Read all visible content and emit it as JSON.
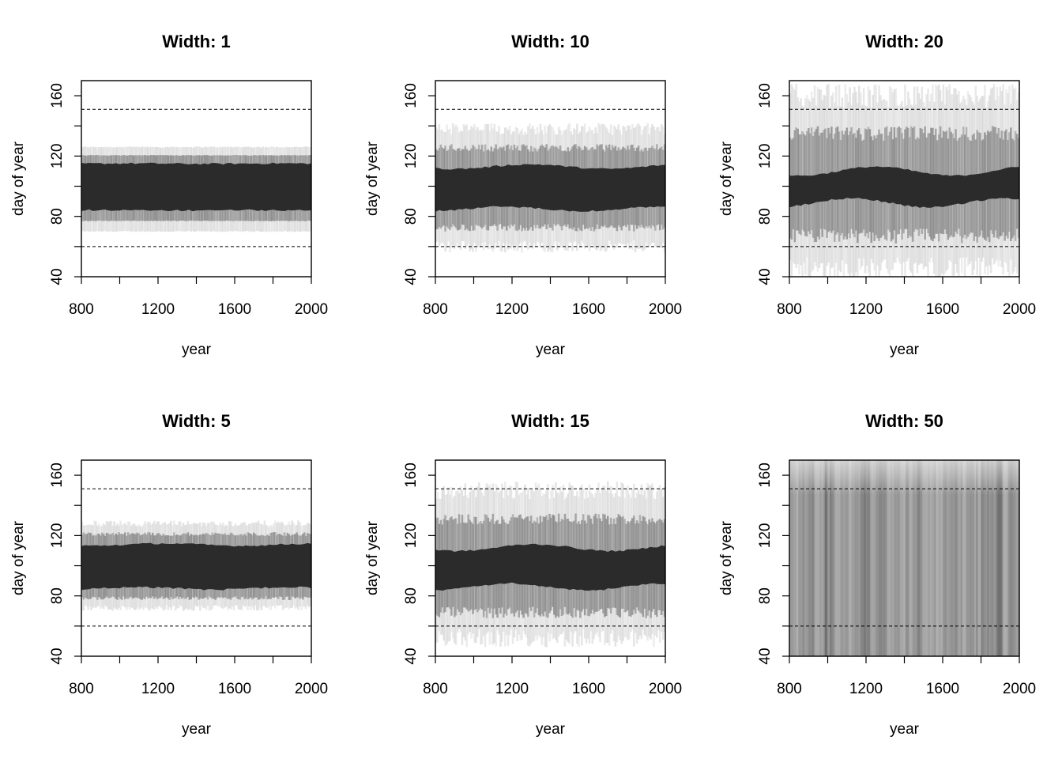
{
  "chart_data": [
    {
      "type": "area",
      "title": "Width: 1",
      "xlabel": "year",
      "ylabel": "day of year",
      "xlim": [
        800,
        2000
      ],
      "ylim": [
        40,
        170
      ],
      "x_ticks": [
        800,
        1200,
        1600,
        2000
      ],
      "y_ticks": [
        40,
        80,
        120,
        160
      ],
      "reference_lines": [
        60,
        151
      ],
      "band": {
        "core_low": 84,
        "core_high": 115,
        "outer_low": 70,
        "outer_high": 126,
        "variability": 1
      },
      "fill_color": "#2b2b2b"
    },
    {
      "type": "area",
      "title": "Width: 10",
      "xlabel": "year",
      "ylabel": "day of year",
      "xlim": [
        800,
        2000
      ],
      "ylim": [
        40,
        170
      ],
      "x_ticks": [
        800,
        1200,
        1600,
        2000
      ],
      "y_ticks": [
        40,
        80,
        120,
        160
      ],
      "reference_lines": [
        60,
        151
      ],
      "band": {
        "core_low": 85,
        "core_high": 113,
        "outer_low": 60,
        "outer_high": 138,
        "variability": 10
      },
      "fill_color": "#2b2b2b"
    },
    {
      "type": "area",
      "title": "Width: 20",
      "xlabel": "year",
      "ylabel": "day of year",
      "xlim": [
        800,
        2000
      ],
      "ylim": [
        40,
        170
      ],
      "x_ticks": [
        800,
        1200,
        1600,
        2000
      ],
      "y_ticks": [
        40,
        80,
        120,
        160
      ],
      "reference_lines": [
        60,
        151
      ],
      "band": {
        "core_low": 89,
        "core_high": 110,
        "outer_low": 45,
        "outer_high": 160,
        "variability": 20
      },
      "fill_color": "#2b2b2b"
    },
    {
      "type": "area",
      "title": "Width: 5",
      "xlabel": "year",
      "ylabel": "day of year",
      "xlim": [
        800,
        2000
      ],
      "ylim": [
        40,
        170
      ],
      "x_ticks": [
        800,
        1200,
        1600,
        2000
      ],
      "y_ticks": [
        40,
        80,
        120,
        160
      ],
      "reference_lines": [
        60,
        151
      ],
      "band": {
        "core_low": 85,
        "core_high": 114,
        "outer_low": 72,
        "outer_high": 128,
        "variability": 5
      },
      "fill_color": "#2b2b2b"
    },
    {
      "type": "area",
      "title": "Width: 15",
      "xlabel": "year",
      "ylabel": "day of year",
      "xlim": [
        800,
        2000
      ],
      "ylim": [
        40,
        170
      ],
      "x_ticks": [
        800,
        1200,
        1600,
        2000
      ],
      "y_ticks": [
        40,
        80,
        120,
        160
      ],
      "reference_lines": [
        60,
        151
      ],
      "band": {
        "core_low": 86,
        "core_high": 112,
        "outer_low": 52,
        "outer_high": 150,
        "variability": 15
      },
      "fill_color": "#2b2b2b"
    },
    {
      "type": "area",
      "title": "Width: 50",
      "xlabel": "year",
      "ylabel": "day of year",
      "xlim": [
        800,
        2000
      ],
      "ylim": [
        40,
        170
      ],
      "x_ticks": [
        800,
        1200,
        1600,
        2000
      ],
      "y_ticks": [
        40,
        80,
        120,
        160
      ],
      "reference_lines": [
        60,
        151
      ],
      "band": {
        "core_low": 40,
        "core_high": 170,
        "outer_low": 40,
        "outer_high": 170,
        "variability": 50
      },
      "fill_color": "#2b2b2b"
    }
  ]
}
